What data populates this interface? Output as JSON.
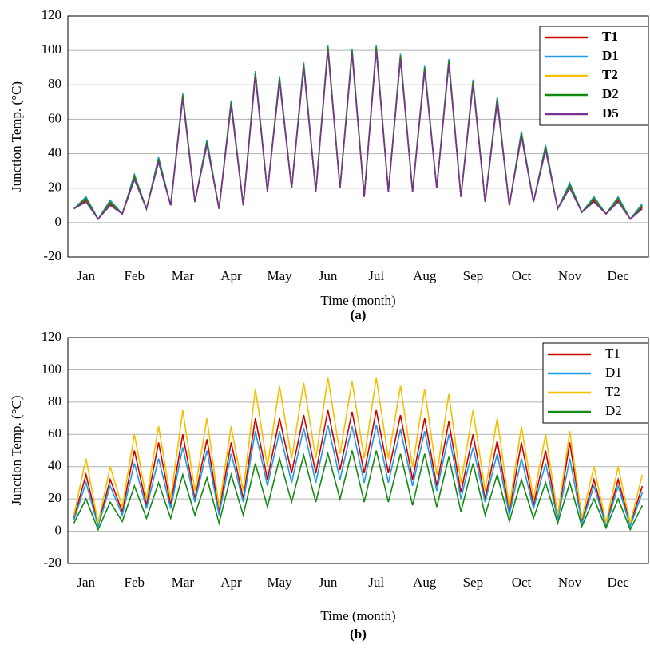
{
  "chart_data": [
    {
      "type": "line",
      "ylabel": "Junction Temp. (°C)",
      "xlabel": "Time (month)",
      "caption": "(a)",
      "categories": [
        null,
        "Jan",
        null,
        null,
        null,
        "Feb",
        null,
        null,
        null,
        "Mar",
        null,
        null,
        null,
        "Apr",
        null,
        null,
        null,
        "May",
        null,
        null,
        null,
        "Jun",
        null,
        null,
        null,
        "Jul",
        null,
        null,
        null,
        "Aug",
        null,
        null,
        null,
        "Sep",
        null,
        null,
        null,
        "Oct",
        null,
        null,
        null,
        "Nov",
        null,
        null,
        null,
        "Dec",
        null,
        null
      ],
      "series": [
        {
          "name": "T1",
          "color": "#cc0000",
          "values": [
            8,
            13,
            2,
            11,
            5,
            26,
            8,
            36,
            10,
            73,
            12,
            46,
            8,
            69,
            10,
            86,
            18,
            83,
            20,
            91,
            18,
            101,
            20,
            99,
            15,
            101,
            18,
            96,
            18,
            89,
            20,
            93,
            15,
            81,
            12,
            71,
            10,
            51,
            12,
            43,
            8,
            21,
            6,
            13,
            5,
            13,
            2,
            9
          ]
        },
        {
          "name": "D1",
          "color": "#1e9be8",
          "values": [
            8,
            15,
            2,
            13,
            5,
            28,
            8,
            38,
            10,
            75,
            12,
            48,
            8,
            71,
            10,
            88,
            18,
            85,
            20,
            93,
            18,
            103,
            20,
            101,
            15,
            103,
            18,
            98,
            18,
            91,
            20,
            95,
            15,
            83,
            12,
            73,
            10,
            53,
            12,
            45,
            8,
            23,
            6,
            15,
            5,
            15,
            2,
            11
          ]
        },
        {
          "name": "T2",
          "color": "#f5c000",
          "values": [
            8,
            14,
            2,
            12,
            5,
            27,
            8,
            37,
            10,
            74,
            12,
            47,
            8,
            70,
            10,
            87,
            18,
            84,
            20,
            92,
            18,
            102,
            20,
            100,
            15,
            102,
            18,
            97,
            18,
            90,
            20,
            94,
            15,
            82,
            12,
            72,
            10,
            52,
            12,
            44,
            8,
            22,
            6,
            14,
            5,
            14,
            2,
            10
          ]
        },
        {
          "name": "D2",
          "color": "#138a13",
          "values": [
            8,
            14,
            2,
            12,
            5,
            27,
            8,
            37,
            10,
            74,
            12,
            47,
            8,
            70,
            10,
            87,
            18,
            84,
            20,
            92,
            18,
            102,
            20,
            100,
            15,
            102,
            18,
            97,
            18,
            90,
            20,
            94,
            15,
            82,
            12,
            72,
            10,
            52,
            12,
            44,
            8,
            22,
            6,
            14,
            5,
            14,
            2,
            10
          ]
        },
        {
          "name": "D5",
          "color": "#7b3294",
          "values": [
            8,
            12,
            2,
            10,
            5,
            25,
            8,
            35,
            10,
            72,
            12,
            45,
            8,
            68,
            10,
            85,
            18,
            82,
            20,
            90,
            18,
            100,
            20,
            98,
            15,
            100,
            18,
            95,
            18,
            88,
            20,
            92,
            15,
            80,
            12,
            70,
            10,
            50,
            12,
            42,
            8,
            20,
            6,
            12,
            5,
            12,
            2,
            8
          ]
        }
      ],
      "ylim": [
        -20,
        120
      ],
      "yticks": [
        -20,
        0,
        20,
        40,
        60,
        80,
        100,
        120
      ],
      "grid": true,
      "legend": "upper right",
      "legend_bold": true
    },
    {
      "type": "line",
      "ylabel": "Junction Temp. (°C)",
      "xlabel": "Time (month)",
      "caption": "(b)",
      "categories": [
        null,
        "Jan",
        null,
        null,
        null,
        "Feb",
        null,
        null,
        null,
        "Mar",
        null,
        null,
        null,
        "Apr",
        null,
        null,
        null,
        "May",
        null,
        null,
        null,
        "Jun",
        null,
        null,
        null,
        "Jul",
        null,
        null,
        null,
        "Aug",
        null,
        null,
        null,
        "Sep",
        null,
        null,
        null,
        "Oct",
        null,
        null,
        null,
        "Nov",
        null,
        null,
        null,
        "Dec",
        null,
        null
      ],
      "series": [
        {
          "name": "T1",
          "color": "#cc0000",
          "values": [
            8,
            35,
            4,
            32,
            12,
            50,
            16,
            55,
            16,
            60,
            20,
            57,
            12,
            55,
            20,
            70,
            32,
            70,
            36,
            72,
            36,
            75,
            38,
            74,
            36,
            75,
            36,
            72,
            32,
            70,
            28,
            68,
            24,
            60,
            20,
            56,
            12,
            55,
            16,
            50,
            8,
            55,
            6,
            32,
            4,
            32,
            4,
            28
          ]
        },
        {
          "name": "D1",
          "color": "#1e9be8",
          "values": [
            7,
            30,
            3,
            28,
            10,
            42,
            14,
            45,
            14,
            52,
            18,
            50,
            10,
            48,
            18,
            62,
            28,
            62,
            30,
            64,
            30,
            66,
            32,
            65,
            30,
            66,
            30,
            63,
            28,
            62,
            25,
            60,
            20,
            52,
            18,
            48,
            10,
            45,
            14,
            42,
            7,
            45,
            5,
            28,
            3,
            28,
            3,
            24
          ]
        },
        {
          "name": "T2",
          "color": "#f5c000",
          "values": [
            10,
            45,
            5,
            40,
            15,
            60,
            20,
            65,
            20,
            75,
            25,
            70,
            15,
            65,
            25,
            88,
            40,
            90,
            45,
            92,
            45,
            95,
            48,
            93,
            45,
            95,
            45,
            90,
            40,
            88,
            35,
            85,
            30,
            75,
            25,
            70,
            15,
            65,
            20,
            60,
            10,
            62,
            8,
            40,
            5,
            40,
            5,
            35
          ]
        },
        {
          "name": "D2",
          "color": "#138a13",
          "values": [
            5,
            20,
            1,
            18,
            6,
            28,
            8,
            30,
            8,
            35,
            10,
            33,
            5,
            35,
            10,
            42,
            15,
            45,
            18,
            47,
            18,
            48,
            20,
            50,
            18,
            50,
            18,
            48,
            16,
            48,
            15,
            46,
            12,
            42,
            10,
            35,
            6,
            32,
            8,
            30,
            5,
            30,
            3,
            20,
            2,
            20,
            1,
            16
          ]
        }
      ],
      "ylim": [
        -20,
        120
      ],
      "yticks": [
        -20,
        0,
        20,
        40,
        60,
        80,
        100,
        120
      ],
      "grid": true,
      "legend": "upper right",
      "legend_bold": false
    }
  ]
}
